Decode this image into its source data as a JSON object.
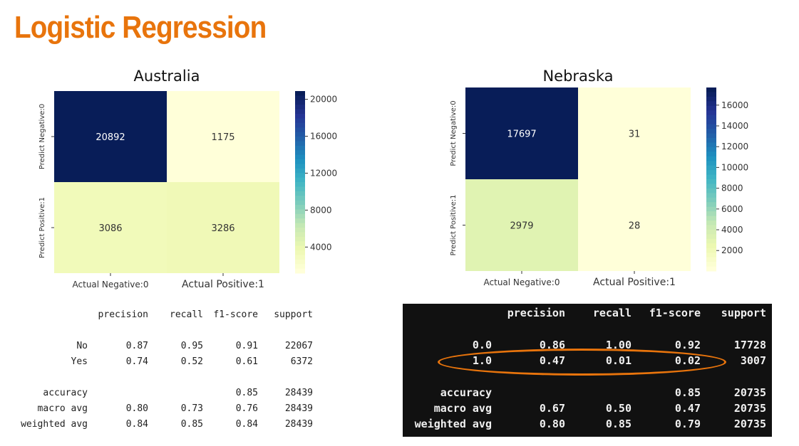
{
  "slide": {
    "title": "Logistic Regression",
    "accent_color": "#e8740c"
  },
  "chart_data": [
    {
      "type": "heatmap",
      "title": "Australia",
      "colormap": "YlGnBu",
      "rows": [
        "Predict Negative:0",
        "Predict Positive:1"
      ],
      "columns": [
        "Actual Negative:0",
        "Actual Positive:1"
      ],
      "values": [
        [
          20892,
          1175
        ],
        [
          3086,
          3286
        ]
      ],
      "colorbar": {
        "range": [
          1175,
          20892
        ],
        "ticks": [
          4000,
          8000,
          12000,
          16000,
          20000
        ]
      }
    },
    {
      "type": "heatmap",
      "title": "Nebraska",
      "colormap": "YlGnBu",
      "rows": [
        "Predict Negative:0",
        "Predict Positive:1"
      ],
      "columns": [
        "Actual Negative:0",
        "Actual Positive:1"
      ],
      "values": [
        [
          17697,
          31
        ],
        [
          2979,
          28
        ]
      ],
      "colorbar": {
        "range": [
          28,
          17697
        ],
        "ticks": [
          2000,
          4000,
          6000,
          8000,
          10000,
          12000,
          14000,
          16000
        ]
      }
    },
    {
      "type": "table",
      "name": "australia-report",
      "columns": [
        "precision",
        "recall",
        "f1-score",
        "support"
      ],
      "rows": [
        {
          "label": "No",
          "values": [
            "0.87",
            "0.95",
            "0.91",
            "22067"
          ]
        },
        {
          "label": "Yes",
          "values": [
            "0.74",
            "0.52",
            "0.61",
            "6372"
          ]
        },
        {
          "label": "accuracy",
          "values": [
            "",
            "",
            "0.85",
            "28439"
          ]
        },
        {
          "label": "macro avg",
          "values": [
            "0.80",
            "0.73",
            "0.76",
            "28439"
          ]
        },
        {
          "label": "weighted avg",
          "values": [
            "0.84",
            "0.85",
            "0.84",
            "28439"
          ]
        }
      ]
    },
    {
      "type": "table",
      "name": "nebraska-report",
      "columns": [
        "precision",
        "recall",
        "f1-score",
        "support"
      ],
      "rows": [
        {
          "label": "0.0",
          "values": [
            "0.86",
            "1.00",
            "0.92",
            "17728"
          ]
        },
        {
          "label": "1.0",
          "values": [
            "0.47",
            "0.01",
            "0.02",
            "3007"
          ],
          "highlighted": true
        },
        {
          "label": "accuracy",
          "values": [
            "",
            "",
            "0.85",
            "20735"
          ]
        },
        {
          "label": "macro avg",
          "values": [
            "0.67",
            "0.50",
            "0.47",
            "20735"
          ]
        },
        {
          "label": "weighted avg",
          "values": [
            "0.80",
            "0.85",
            "0.79",
            "20735"
          ]
        }
      ]
    }
  ]
}
